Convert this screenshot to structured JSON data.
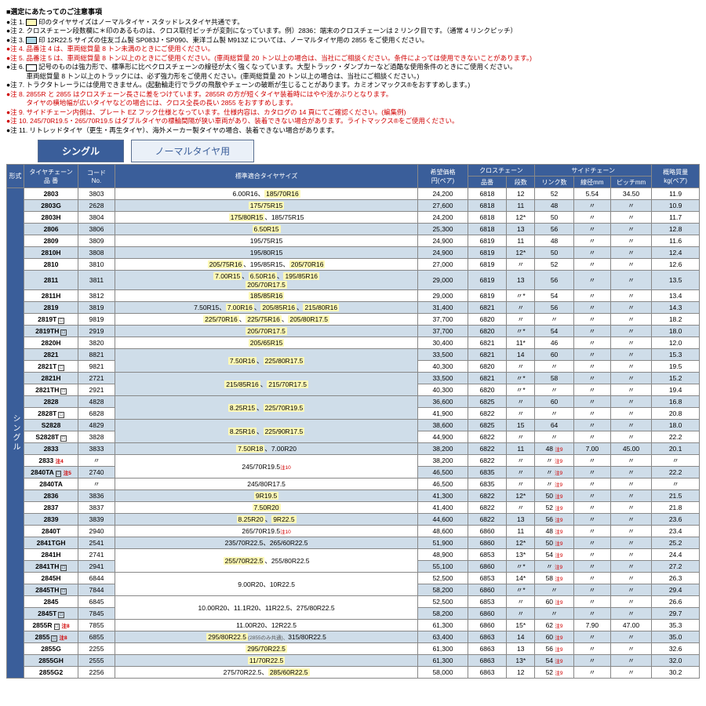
{
  "notesTitle": "■選定にあたってのご注意事項",
  "notes": [
    {
      "pre": "●注 1.",
      "swatch": "sw-yellow",
      "post": "印のタイヤサイズはノーマルタイヤ・スタッドレスタイヤ共通です。"
    },
    {
      "pre": "●注 2. クロスチェーン段数欄に＊印のあるものは、クロス取付ピッチが変則になっています。例）2836：端末のクロスチェーンは 2 リンク目です。（通常 4 リンクピッチ）"
    },
    {
      "pre": "●注 3.",
      "swatch": "sw-blue",
      "post": "印 12R22.5 サイズの住友ゴム製 SP083J・SP090、東洋ゴム製 M913Z については、ノーマルタイヤ用の 2855 をご使用ください。"
    },
    {
      "pre": "●注 4. 品番注 4 は、車両総質量 8 トン未満のときにご使用ください。",
      "cls": "red"
    },
    {
      "pre": "●注 5. 品番注 5 は、車両総質量 8 トン以上のときにご使用ください。(車両総質量 20 トン以上の場合は、当社にご相談ください。条件によっては使用できないことがあります。)",
      "cls": "red"
    },
    {
      "pre": "●注 6.",
      "swatch": "sw-white",
      "post": "記号のものは強力形で、標準形に比べクロスチェーンの線径が太く強くなっています。大型トラック・ダンプカーなど過酷な使用条件のときにご使用ください。\n　　　車両総質量 8 トン以上のトラックには、必ず強力形をご使用ください。(車両総質量 20 トン以上の場合は、当社にご相談ください。)"
    },
    {
      "pre": "●注 7. トラクタトレーラには使用できません。(起動輪走行でラグの飛散やチェーンの破断が生じることがあります。カミオンマックス®をおすすめします。)"
    },
    {
      "pre": "●注 8. 2855R と 2855 はクロスチェーン長さに差をつけています。2855R の方が短くタイヤ装着時にはやや浅かぶりとなります。\n　　　タイヤの横地幅が広いタイヤなどの場合には、クロス全長の長い 2855 をおすすめします。",
      "cls": "red"
    },
    {
      "pre": "●注 9. サイドチェーン内側は、プレート EZ フック仕様となっています。仕様内容は、カタログの 14 頁にてご確認ください。(編集例)",
      "cls": "red"
    },
    {
      "pre": "●注 10. 245/70R19.5・265/70R19.5 はダブルタイヤの標輪間隔が狭い車両があり、装着できない場合があります。ライトマックス®をご使用ください。",
      "cls": "red"
    },
    {
      "pre": "●注 11. リトレッドタイヤ（更生・再生タイヤ）、海外メーカー製タイヤの場合、装着できない場合があります。"
    }
  ],
  "tabs": {
    "active": "シングル",
    "inactive": "ノーマルタイヤ用"
  },
  "header": {
    "h1": "形式",
    "h2": "タイヤチェーン\n品 番",
    "h3": "コード\nNo.",
    "h4": "標準適合タイヤサイズ",
    "h5": "希望価格\n円(ペア)",
    "g1": "クロスチェーン",
    "g1a": "品番",
    "g1b": "段数",
    "g2": "サイドチェーン",
    "g2a": "リンク数",
    "g2b": "線径mm",
    "g2c": "ピッチmm",
    "h6": "概略質量\nkg(ペア)"
  },
  "vertLabel": "シングル",
  "rows": [
    {
      "s": 0,
      "part": "2803",
      "code": "3803",
      "size": [
        {
          "t": "6.00R16"
        },
        {
          "s": "、"
        },
        {
          "t": "185/70R16",
          "hl": 1
        }
      ],
      "price": "24,200",
      "cc1": "6818",
      "cc2": "12",
      "sc1": "52",
      "sc2": "5.54",
      "sc3": "34.50",
      "wt": "11.9"
    },
    {
      "s": 1,
      "part": "2803G",
      "code": "2628",
      "size": [
        {
          "t": "175/75R15",
          "hl": 1
        }
      ],
      "price": "27,600",
      "cc1": "6818",
      "cc2": "11",
      "sc1": "48",
      "sc2": "〃",
      "sc3": "〃",
      "wt": "10.9"
    },
    {
      "s": 0,
      "part": "2803H",
      "code": "3804",
      "size": [
        {
          "t": "175/80R15",
          "hl": 1
        },
        {
          "s": "、"
        },
        {
          "t": "185/75R15"
        }
      ],
      "price": "24,200",
      "cc1": "6818",
      "cc2": "12*",
      "sc1": "50",
      "sc2": "〃",
      "sc3": "〃",
      "wt": "11.7"
    },
    {
      "s": 1,
      "part": "2806",
      "code": "3806",
      "size": [
        {
          "t": "6.50R15",
          "hl": 1
        }
      ],
      "price": "25,300",
      "cc1": "6818",
      "cc2": "13",
      "sc1": "56",
      "sc2": "〃",
      "sc3": "〃",
      "wt": "12.8"
    },
    {
      "s": 0,
      "part": "2809",
      "code": "3809",
      "size": [
        {
          "t": "195/75R15"
        }
      ],
      "price": "24,900",
      "cc1": "6819",
      "cc2": "11",
      "sc1": "48",
      "sc2": "〃",
      "sc3": "〃",
      "wt": "11.6"
    },
    {
      "s": 1,
      "part": "2810H",
      "code": "3808",
      "size": [
        {
          "t": "195/80R15"
        }
      ],
      "price": "24,900",
      "cc1": "6819",
      "cc2": "12*",
      "sc1": "50",
      "sc2": "〃",
      "sc3": "〃",
      "wt": "12.4"
    },
    {
      "s": 0,
      "part": "2810",
      "code": "3810",
      "size": [
        {
          "t": "205/75R16",
          "hl": 1
        },
        {
          "s": "、"
        },
        {
          "t": "195/85R15"
        },
        {
          "s": "、"
        },
        {
          "t": "205/70R16",
          "hl": 1
        }
      ],
      "price": "27,000",
      "cc1": "6819",
      "cc2": "〃",
      "sc1": "52",
      "sc2": "〃",
      "sc3": "〃",
      "wt": "12.6"
    },
    {
      "s": 1,
      "part": "2811",
      "code": "3811",
      "size": [
        {
          "t": "7.00R15",
          "hl": 1
        },
        {
          "s": "、"
        },
        {
          "t": "6.50R16",
          "hl": 1
        },
        {
          "s": "、"
        },
        {
          "t": "195/85R16",
          "hl": 1
        },
        {
          "br": 1
        },
        {
          "t": "205/70R17.5",
          "hl": 1
        }
      ],
      "price": "29,000",
      "cc1": "6819",
      "cc2": "13",
      "sc1": "56",
      "sc2": "〃",
      "sc3": "〃",
      "wt": "13.5"
    },
    {
      "s": 0,
      "part": "2811H",
      "code": "3812",
      "size": [
        {
          "t": "185/85R16",
          "hl": 1
        }
      ],
      "price": "29,000",
      "cc1": "6819",
      "cc2": "〃*",
      "sc1": "54",
      "sc2": "〃",
      "sc3": "〃",
      "wt": "13.4"
    },
    {
      "s": 1,
      "part": "2819",
      "code": "3819",
      "size": [
        {
          "t": "7.50R15"
        },
        {
          "s": "、"
        },
        {
          "t": "7.00R16",
          "hl": 1
        },
        {
          "s": "、"
        },
        {
          "t": "205/85R16",
          "hl": 1
        },
        {
          "s": "、"
        },
        {
          "t": "215/80R16",
          "hl": 1
        }
      ],
      "price": "31,400",
      "cc1": "6821",
      "cc2": "〃",
      "sc1": "56",
      "sc2": "〃",
      "sc3": "〃",
      "wt": "14.3"
    },
    {
      "s": 0,
      "part": "2819T",
      "mk": "□",
      "code": "9819",
      "size": [
        {
          "t": "225/70R16",
          "hl": 1
        },
        {
          "s": "、"
        },
        {
          "t": "225/75R16",
          "hl": 1
        },
        {
          "s": "、"
        },
        {
          "t": "205/80R17.5",
          "hl": 1
        }
      ],
      "price": "37,700",
      "cc1": "6820",
      "cc2": "〃",
      "sc1": "〃",
      "sc2": "〃",
      "sc3": "〃",
      "wt": "18.2"
    },
    {
      "s": 1,
      "part": "2819TH",
      "mk": "□",
      "code": "2919",
      "size": [
        {
          "t": "205/70R17.5",
          "hl": 1
        }
      ],
      "price": "37,700",
      "cc1": "6820",
      "cc2": "〃*",
      "sc1": "54",
      "sc2": "〃",
      "sc3": "〃",
      "wt": "18.0"
    },
    {
      "s": 0,
      "part": "2820H",
      "code": "3820",
      "size": [
        {
          "t": "205/65R15",
          "hl": 1
        }
      ],
      "price": "30,400",
      "cc1": "6821",
      "cc2": "11*",
      "sc1": "46",
      "sc2": "〃",
      "sc3": "〃",
      "wt": "12.0"
    },
    {
      "s": 1,
      "part": "2821",
      "code": "8821",
      "size": [
        {
          "t": "7.50R16",
          "hl": 1
        },
        {
          "s": "、"
        },
        {
          "t": "225/80R17.5",
          "hl": 1
        }
      ],
      "rs": 2,
      "price": "33,500",
      "cc1": "6821",
      "cc2": "14",
      "sc1": "60",
      "sc2": "〃",
      "sc3": "〃",
      "wt": "15.3"
    },
    {
      "s": 0,
      "part": "2821T",
      "mk": "□",
      "code": "9821",
      "price": "40,300",
      "cc1": "6820",
      "cc2": "〃",
      "sc1": "〃",
      "sc2": "〃",
      "sc3": "〃",
      "wt": "19.5"
    },
    {
      "s": 1,
      "part": "2821H",
      "code": "2721",
      "size": [
        {
          "t": "215/85R16",
          "hl": 1
        },
        {
          "s": "、"
        },
        {
          "t": "215/70R17.5",
          "hl": 1
        }
      ],
      "rs": 2,
      "price": "33,500",
      "cc1": "6821",
      "cc2": "〃*",
      "sc1": "58",
      "sc2": "〃",
      "sc3": "〃",
      "wt": "15.2"
    },
    {
      "s": 0,
      "part": "2821TH",
      "mk": "□",
      "code": "2921",
      "price": "40,300",
      "cc1": "6820",
      "cc2": "〃*",
      "sc1": "〃",
      "sc2": "〃",
      "sc3": "〃",
      "wt": "19.4"
    },
    {
      "s": 1,
      "part": "2828",
      "code": "4828",
      "size": [
        {
          "t": "8.25R15",
          "hl": 1
        },
        {
          "s": "、"
        },
        {
          "t": "225/70R19.5",
          "hl": 1
        }
      ],
      "rs": 2,
      "price": "36,600",
      "cc1": "6825",
      "cc2": "〃",
      "sc1": "60",
      "sc2": "〃",
      "sc3": "〃",
      "wt": "16.8"
    },
    {
      "s": 0,
      "part": "2828T",
      "mk": "□",
      "code": "6828",
      "price": "41,900",
      "cc1": "6822",
      "cc2": "〃",
      "sc1": "〃",
      "sc2": "〃",
      "sc3": "〃",
      "wt": "20.8"
    },
    {
      "s": 1,
      "part": "S2828",
      "code": "4829",
      "size": [
        {
          "t": "8.25R16",
          "hl": 1
        },
        {
          "s": "、"
        },
        {
          "t": "225/90R17.5",
          "hl": 1
        }
      ],
      "rs": 2,
      "price": "38,600",
      "cc1": "6825",
      "cc2": "15",
      "sc1": "64",
      "sc2": "〃",
      "sc3": "〃",
      "wt": "18.0"
    },
    {
      "s": 0,
      "part": "S2828T",
      "mk": "□",
      "code": "3828",
      "price": "44,900",
      "cc1": "6822",
      "cc2": "〃",
      "sc1": "〃",
      "sc2": "〃",
      "sc3": "〃",
      "wt": "22.2"
    },
    {
      "s": 1,
      "part": "2833",
      "code": "3833",
      "size": [
        {
          "t": "7.50R18",
          "hl": 1
        },
        {
          "s": "、"
        },
        {
          "t": "7.00R20"
        }
      ],
      "price": "38,200",
      "cc1": "6822",
      "cc2": "11",
      "sc1": "48",
      "sub": "注9",
      "sc2": "7.00",
      "sc3": "45.00",
      "wt": "20.1"
    },
    {
      "s": 0,
      "part": "2833",
      "psub": "注4",
      "code": "〃",
      "size": [
        {
          "t": "245/70R19.5"
        },
        {
          "s": " ",
          "sub": "注10"
        }
      ],
      "rs": 2,
      "price": "38,200",
      "cc1": "6822",
      "cc2": "〃",
      "sc1": "〃",
      "sub": "注9",
      "sc2": "〃",
      "sc3": "〃",
      "wt": "〃"
    },
    {
      "s": 1,
      "part": "2840TA",
      "mk": "□",
      "psub": "注5",
      "code": "2740",
      "price": "46,500",
      "cc1": "6835",
      "cc2": "〃",
      "sc1": "〃",
      "sub": "注9",
      "sc2": "〃",
      "sc3": "〃",
      "wt": "22.2"
    },
    {
      "s": 0,
      "part": "2840TA",
      "code": "〃",
      "size": [
        {
          "t": "245/80R17.5"
        }
      ],
      "price": "46,500",
      "cc1": "6835",
      "cc2": "〃",
      "sc1": "〃",
      "sub": "注9",
      "sc2": "〃",
      "sc3": "〃",
      "wt": "〃"
    },
    {
      "s": 1,
      "part": "2836",
      "code": "3836",
      "size": [
        {
          "t": "9R19.5",
          "hl": 1
        }
      ],
      "price": "41,300",
      "cc1": "6822",
      "cc2": "12*",
      "sc1": "50",
      "sub": "注9",
      "sc2": "〃",
      "sc3": "〃",
      "wt": "21.5"
    },
    {
      "s": 0,
      "part": "2837",
      "code": "3837",
      "size": [
        {
          "t": "7.50R20",
          "hl": 1
        }
      ],
      "price": "41,400",
      "cc1": "6822",
      "cc2": "〃",
      "sc1": "52",
      "sub": "注9",
      "sc2": "〃",
      "sc3": "〃",
      "wt": "21.8"
    },
    {
      "s": 1,
      "part": "2839",
      "code": "3839",
      "size": [
        {
          "t": "8.25R20",
          "hl": 1
        },
        {
          "s": "、"
        },
        {
          "t": "9R22.5",
          "hl": 1
        }
      ],
      "price": "44,600",
      "cc1": "6822",
      "cc2": "13",
      "sc1": "56",
      "sub": "注9",
      "sc2": "〃",
      "sc3": "〃",
      "wt": "23.6"
    },
    {
      "s": 0,
      "part": "2840T",
      "code": "2940",
      "size": [
        {
          "t": "265/70R19.5"
        },
        {
          "s": " ",
          "sub": "注10"
        }
      ],
      "price": "48,600",
      "cc1": "6860",
      "cc2": "11",
      "sc1": "48",
      "sub": "注9",
      "sc2": "〃",
      "sc3": "〃",
      "wt": "23.4"
    },
    {
      "s": 1,
      "part": "2841TGH",
      "code": "2541",
      "size": [
        {
          "t": "235/70R22.5"
        },
        {
          "s": "、"
        },
        {
          "t": "265/60R22.5"
        }
      ],
      "price": "51,900",
      "cc1": "6860",
      "cc2": "12*",
      "sc1": "50",
      "sub": "注9",
      "sc2": "〃",
      "sc3": "〃",
      "wt": "25.2"
    },
    {
      "s": 0,
      "part": "2841H",
      "code": "2741",
      "size": [
        {
          "t": "255/70R22.5",
          "hl": 1
        },
        {
          "s": "、"
        },
        {
          "t": "255/80R22.5"
        }
      ],
      "rs": 2,
      "price": "48,900",
      "cc1": "6853",
      "cc2": "13*",
      "sc1": "54",
      "sub": "注9",
      "sc2": "〃",
      "sc3": "〃",
      "wt": "24.4"
    },
    {
      "s": 1,
      "part": "2841TH",
      "mk": "□",
      "code": "2941",
      "price": "55,100",
      "cc1": "6860",
      "cc2": "〃*",
      "sc1": "〃",
      "sub": "注9",
      "sc2": "〃",
      "sc3": "〃",
      "wt": "27.2"
    },
    {
      "s": 0,
      "part": "2845H",
      "code": "6844",
      "size": [
        {
          "t": "9.00R20"
        },
        {
          "s": "、"
        },
        {
          "t": "10R22.5"
        }
      ],
      "rs": 2,
      "price": "52,500",
      "cc1": "6853",
      "cc2": "14*",
      "sc1": "58",
      "sub": "注9",
      "sc2": "〃",
      "sc3": "〃",
      "wt": "26.3"
    },
    {
      "s": 1,
      "part": "2845TH",
      "mk": "□",
      "code": "7844",
      "price": "58,200",
      "cc1": "6860",
      "cc2": "〃*",
      "sc1": "〃",
      "sc2": "〃",
      "sc3": "〃",
      "wt": "29.4"
    },
    {
      "s": 0,
      "part": "2845",
      "code": "6845",
      "size": [
        {
          "t": "10.00R20"
        },
        {
          "s": "、"
        },
        {
          "t": "11.1R20"
        },
        {
          "s": "、"
        },
        {
          "t": "11R22.5"
        },
        {
          "s": "、"
        },
        {
          "t": "275/80R22.5"
        }
      ],
      "rs": 2,
      "price": "52,500",
      "cc1": "6853",
      "cc2": "〃",
      "sc1": "60",
      "sub": "注9",
      "sc2": "〃",
      "sc3": "〃",
      "wt": "26.6"
    },
    {
      "s": 1,
      "part": "2845T",
      "mk": "□",
      "code": "7845",
      "price": "58,200",
      "cc1": "6860",
      "cc2": "〃",
      "sc1": "〃",
      "sc2": "〃",
      "sc3": "〃",
      "wt": "29.7"
    },
    {
      "s": 0,
      "part": "2855R",
      "mk": "□",
      "psub": "注8",
      "code": "7855",
      "size": [
        {
          "t": "11.00R20"
        },
        {
          "s": "、"
        },
        {
          "t": "12R22.5"
        }
      ],
      "price": "61,300",
      "cc1": "6860",
      "cc2": "15*",
      "sc1": "62",
      "sub": "注9",
      "sc2": "7.90",
      "sc3": "47.00",
      "wt": "35.3"
    },
    {
      "s": 1,
      "part": "2855",
      "mk": "□",
      "psub": "注8",
      "code": "6855",
      "size": [
        {
          "t": "295/80R22.5",
          "hl": 1
        },
        {
          "s": "(2855のみ共通)、",
          "sm": 1
        },
        {
          "t": "315/80R22.5"
        }
      ],
      "price": "63,400",
      "cc1": "6863",
      "cc2": "14",
      "sc1": "60",
      "sub": "注9",
      "sc2": "〃",
      "sc3": "〃",
      "wt": "35.0"
    },
    {
      "s": 0,
      "part": "2855G",
      "code": "2255",
      "size": [
        {
          "t": "295/70R22.5",
          "hl": 1
        }
      ],
      "price": "61,300",
      "cc1": "6863",
      "cc2": "13",
      "sc1": "56",
      "sub": "注9",
      "sc2": "〃",
      "sc3": "〃",
      "wt": "32.6"
    },
    {
      "s": 1,
      "part": "2855GH",
      "code": "2555",
      "size": [
        {
          "t": "11/70R22.5",
          "hl": 1
        }
      ],
      "price": "61,300",
      "cc1": "6863",
      "cc2": "13*",
      "sc1": "54",
      "sub": "注9",
      "sc2": "〃",
      "sc3": "〃",
      "wt": "32.0"
    },
    {
      "s": 0,
      "part": "2855G2",
      "code": "2256",
      "size": [
        {
          "t": "275/70R22.5"
        },
        {
          "s": "、"
        },
        {
          "t": "285/60R22.5",
          "hl": 1
        }
      ],
      "price": "58,000",
      "cc1": "6863",
      "cc2": "12",
      "sc1": "52",
      "sub": "注9",
      "sc2": "〃",
      "sc3": "〃",
      "wt": "30.2"
    }
  ]
}
